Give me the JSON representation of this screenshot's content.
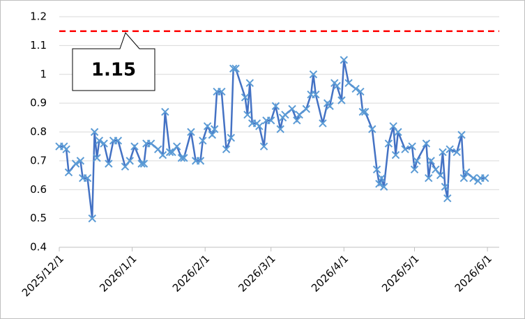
{
  "chart_data": {
    "type": "line",
    "x": [
      "2025/12/1",
      "2025/12/3",
      "2025/12/4",
      "2025/12/5",
      "2025/12/8",
      "2025/12/10",
      "2025/12/11",
      "2025/12/13",
      "2025/12/15",
      "2025/12/16",
      "2025/12/17",
      "2025/12/18",
      "2025/12/20",
      "2025/12/22",
      "2025/12/24",
      "2025/12/26",
      "2025/12/29",
      "2025/12/31",
      "2026/1/2",
      "2026/1/5",
      "2026/1/6",
      "2026/1/7",
      "2026/1/9",
      "2026/1/12",
      "2026/1/14",
      "2026/1/15",
      "2026/1/17",
      "2026/1/18",
      "2026/1/20",
      "2026/1/22",
      "2026/1/23",
      "2026/1/26",
      "2026/1/28",
      "2026/1/30",
      "2026/1/31",
      "2026/2/2",
      "2026/2/4",
      "2026/2/5",
      "2026/2/6",
      "2026/2/8",
      "2026/2/10",
      "2026/2/12",
      "2026/2/13",
      "2026/2/14",
      "2026/2/18",
      "2026/2/19",
      "2026/2/20",
      "2026/2/21",
      "2026/2/23",
      "2026/2/24",
      "2026/2/26",
      "2026/2/27",
      "2026/3/1",
      "2026/3/3",
      "2026/3/5",
      "2026/3/6",
      "2026/3/7",
      "2026/3/10",
      "2026/3/12",
      "2026/3/13",
      "2026/3/16",
      "2026/3/18",
      "2026/3/19",
      "2026/3/20",
      "2026/3/23",
      "2026/3/25",
      "2026/3/26",
      "2026/3/28",
      "2026/3/29",
      "2026/3/31",
      "2026/4/1",
      "2026/4/3",
      "2026/4/6",
      "2026/4/8",
      "2026/4/9",
      "2026/4/10",
      "2026/4/13",
      "2026/4/15",
      "2026/4/16",
      "2026/4/17",
      "2026/4/18",
      "2026/4/20",
      "2026/4/22",
      "2026/4/23",
      "2026/4/24",
      "2026/4/27",
      "2026/4/30",
      "2026/5/1",
      "2026/5/2",
      "2026/5/6",
      "2026/5/7",
      "2026/5/8",
      "2026/5/10",
      "2026/5/12",
      "2026/5/13",
      "2026/5/14",
      "2026/5/15",
      "2026/5/16",
      "2026/5/19",
      "2026/5/21",
      "2026/5/22",
      "2026/5/23",
      "2026/5/26",
      "2026/5/28",
      "2026/5/29",
      "2026/5/31"
    ],
    "series": [
      {
        "color": "#4472c4",
        "marker_color": "#5b9bd5",
        "values": [
          0.75,
          0.75,
          0.74,
          0.66,
          0.69,
          0.7,
          0.64,
          0.64,
          0.5,
          0.8,
          0.71,
          0.77,
          0.76,
          0.69,
          0.77,
          0.77,
          0.68,
          0.7,
          0.75,
          0.69,
          0.69,
          0.76,
          0.76,
          0.74,
          0.72,
          0.87,
          0.73,
          0.73,
          0.75,
          0.71,
          0.71,
          0.8,
          0.7,
          0.7,
          0.77,
          0.82,
          0.79,
          0.81,
          0.94,
          0.94,
          0.74,
          0.78,
          1.02,
          1.02,
          0.92,
          0.86,
          0.97,
          0.83,
          0.83,
          0.82,
          0.75,
          0.84,
          0.84,
          0.89,
          0.81,
          0.85,
          0.86,
          0.88,
          0.84,
          0.86,
          0.88,
          0.93,
          1.0,
          0.93,
          0.83,
          0.9,
          0.89,
          0.97,
          0.96,
          0.91,
          1.05,
          0.97,
          0.95,
          0.94,
          0.87,
          0.87,
          0.81,
          0.67,
          0.62,
          0.64,
          0.61,
          0.76,
          0.82,
          0.72,
          0.8,
          0.74,
          0.75,
          0.67,
          0.7,
          0.76,
          0.64,
          0.7,
          0.67,
          0.65,
          0.73,
          0.61,
          0.57,
          0.74,
          0.73,
          0.79,
          0.64,
          0.66,
          0.64,
          0.63,
          0.64,
          0.64
        ]
      }
    ],
    "xlim": [
      "2025/12/1",
      "2026/6/6"
    ],
    "xticks": [
      "2025/12/1",
      "2026/1/1",
      "2026/2/1",
      "2026/3/1",
      "2026/4/1",
      "2026/5/1",
      "2026/6/1"
    ],
    "ylim": [
      0.4,
      1.2
    ],
    "yticks": [
      0.4,
      0.5,
      0.6,
      0.7,
      0.8,
      0.9,
      1,
      1.1,
      1.2
    ],
    "grid": true,
    "reference_line": {
      "value": 1.15,
      "color": "#ff0000"
    }
  }
}
